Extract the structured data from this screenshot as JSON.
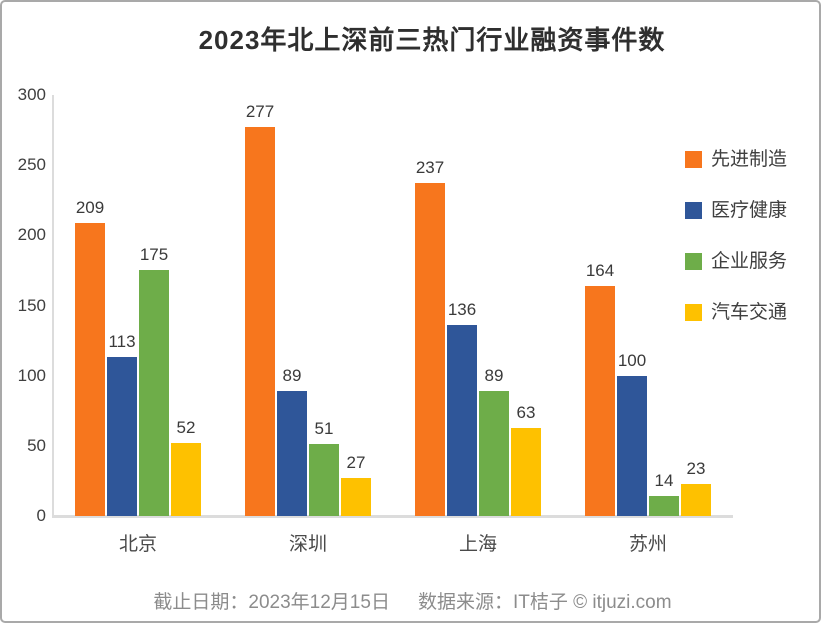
{
  "title": "2023年北上深前三热门行业融资事件数",
  "footer": {
    "date_label": "截止日期：2023年12月15日",
    "source_label": "数据来源：IT桔子 © itjuzi.com"
  },
  "colors": {
    "axis_line": "#dcdcdc",
    "title_text": "#2f2f2f",
    "tick_text": "#3f3f3f",
    "value_label_text": "#3a3a3a",
    "category_text": "#4a4a4a",
    "footer_text": "#8c8c8c",
    "card_border": "#a9a9a9"
  },
  "chart_data": {
    "type": "bar",
    "title": "2023年北上深前三热门行业融资事件数",
    "categories": [
      "北京",
      "深圳",
      "上海",
      "苏州"
    ],
    "series": [
      {
        "name": "先进制造",
        "color": "#F7761D",
        "values": [
          209,
          277,
          237,
          164
        ]
      },
      {
        "name": "医疗健康",
        "color": "#2F5699",
        "values": [
          113,
          89,
          136,
          100
        ]
      },
      {
        "name": "企业服务",
        "color": "#6EAD49",
        "values": [
          175,
          51,
          89,
          14
        ]
      },
      {
        "name": "汽车交通",
        "color": "#FEC100",
        "values": [
          52,
          27,
          63,
          23
        ]
      }
    ],
    "xlabel": "",
    "ylabel": "",
    "ylim": [
      0,
      300
    ],
    "yticks": [
      0,
      50,
      100,
      150,
      200,
      250,
      300
    ],
    "grid": false,
    "legend_position": "right",
    "value_labels": true
  }
}
